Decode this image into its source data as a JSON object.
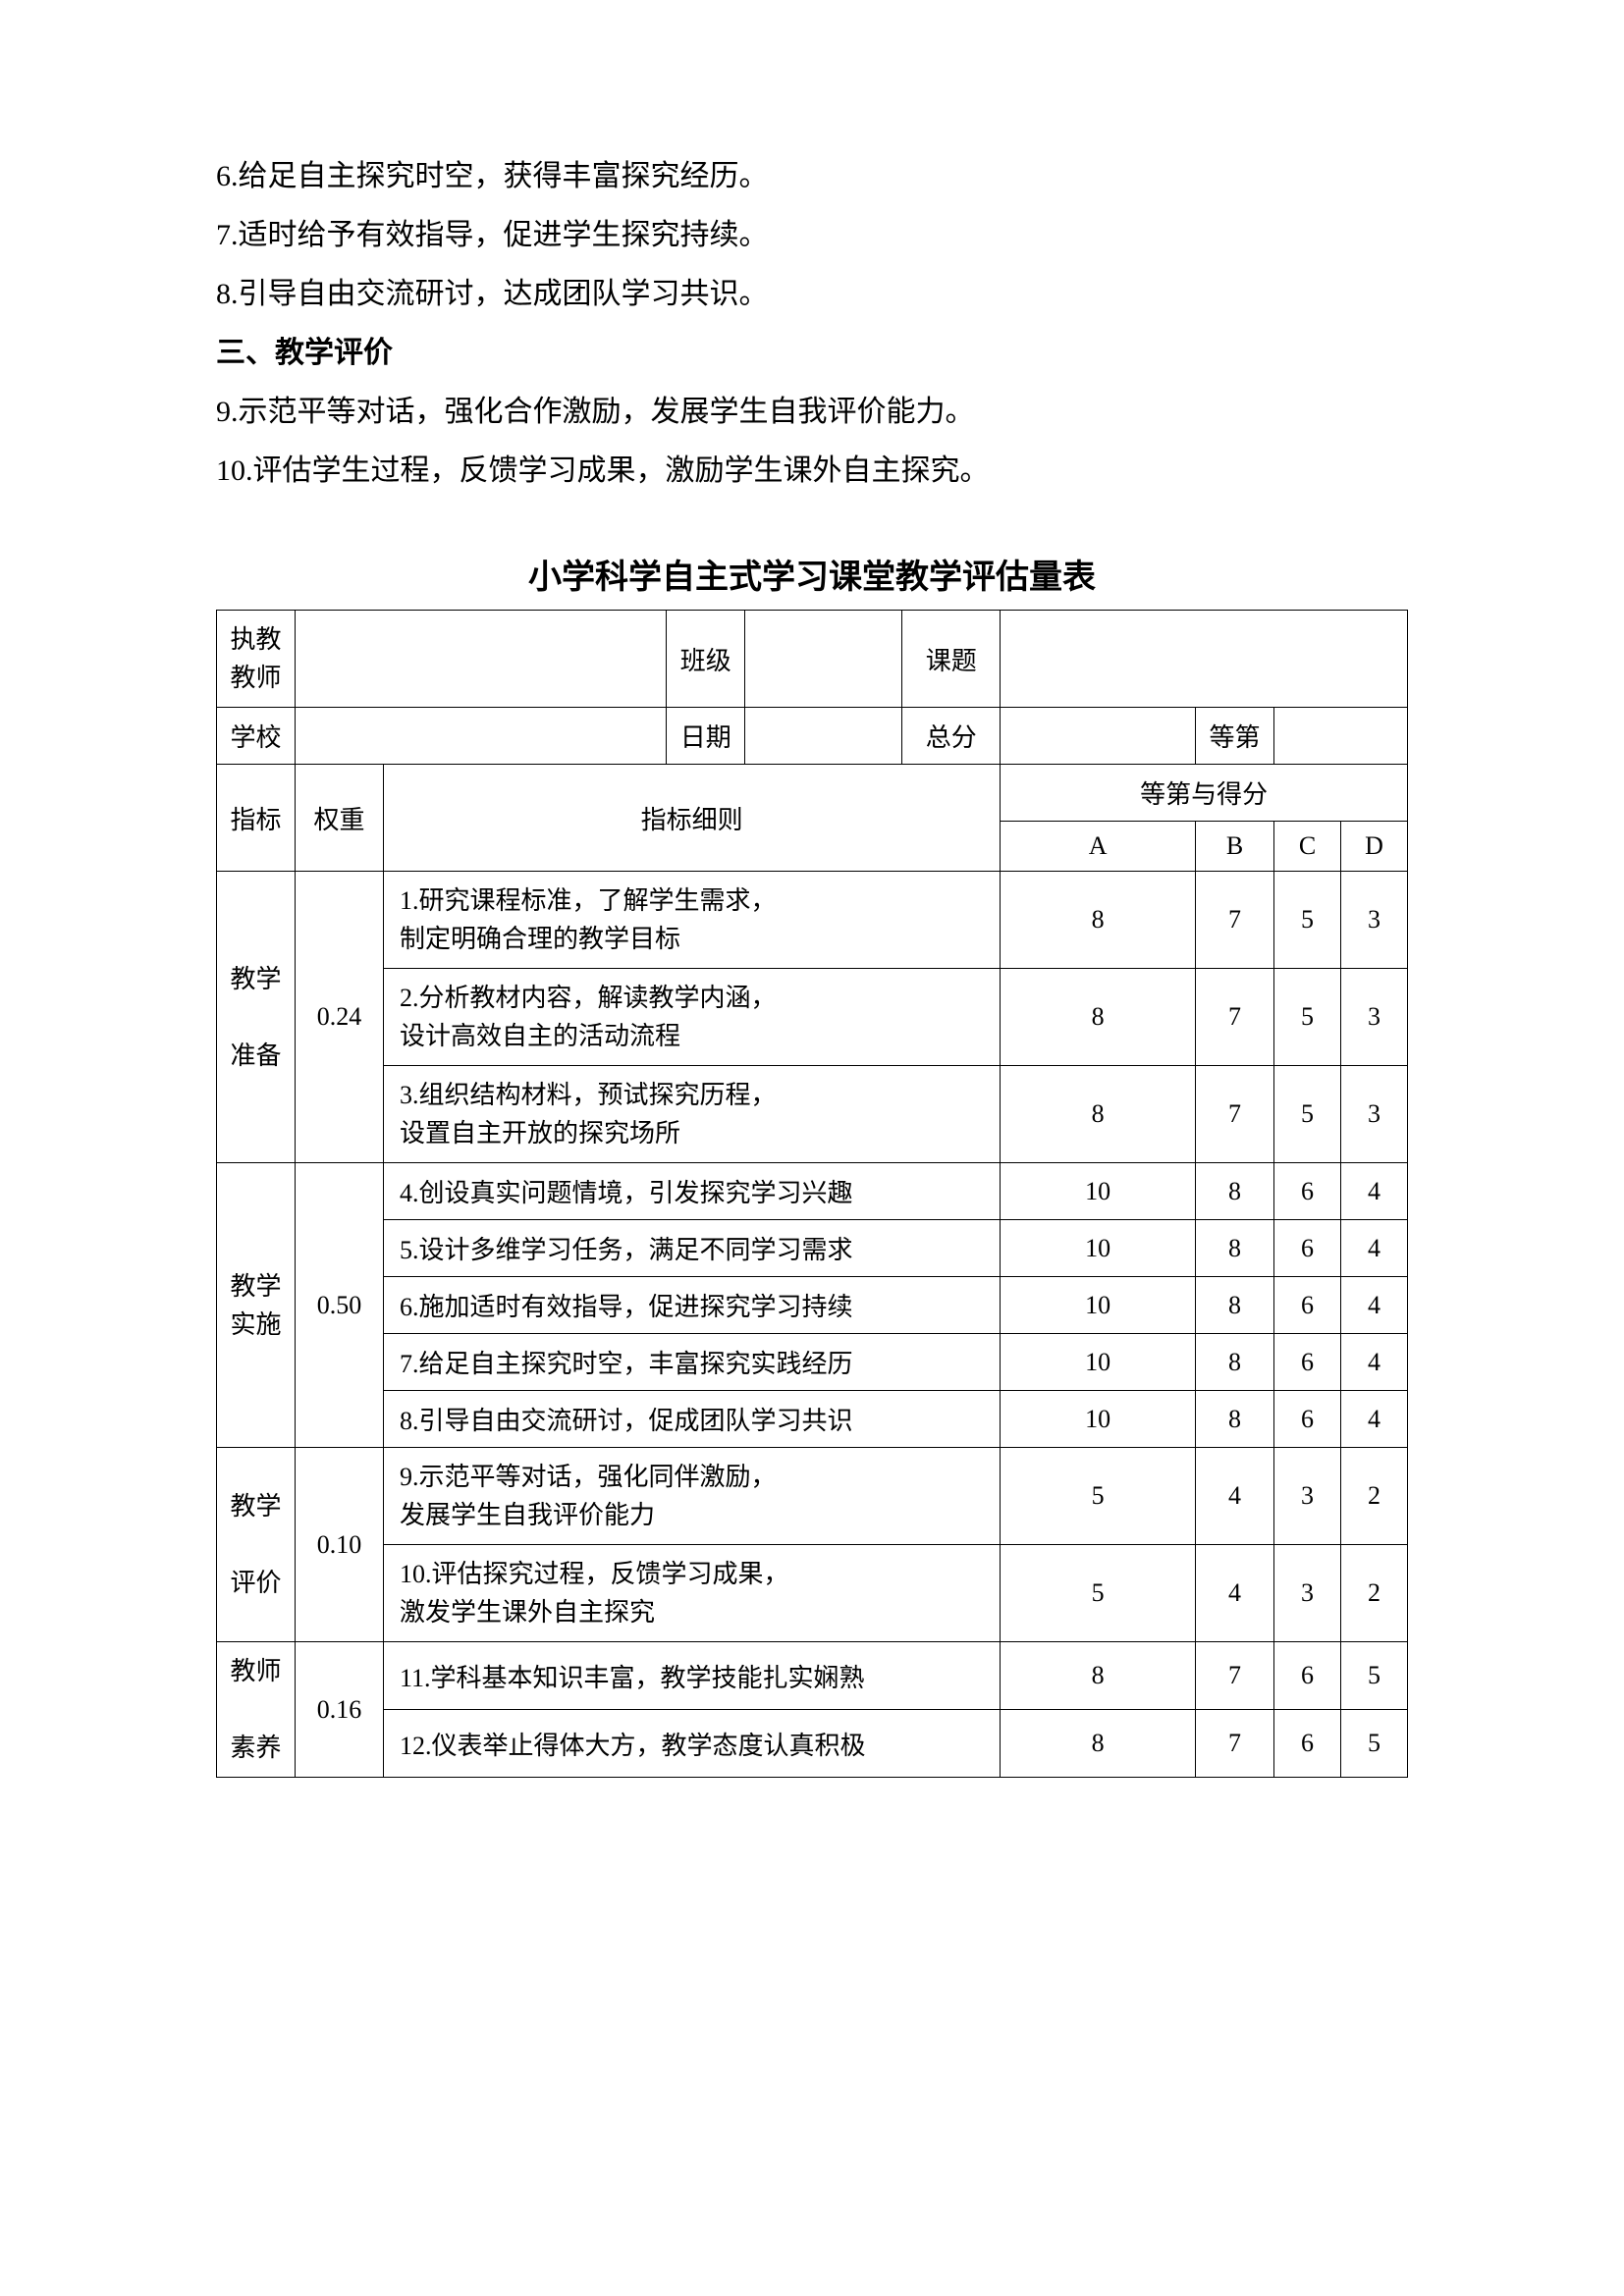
{
  "intro": {
    "line6": "6.给足自主探究时空，获得丰富探究经历。",
    "line7": "7.适时给予有效指导，促进学生探究持续。",
    "line8": "8.引导自由交流研讨，达成团队学习共识。",
    "section3": "三、教学评价",
    "line9": "9.示范平等对话，强化合作激励，发展学生自我评价能力。",
    "line10": "10.评估学生过程，反馈学习成果，激励学生课外自主探究。"
  },
  "table": {
    "title": "小学科学自主式学习课堂教学评估量表",
    "header": {
      "teacher_label": "执教教师",
      "class_label": "班级",
      "topic_label": "课题",
      "school_label": "学校",
      "date_label": "日期",
      "total_label": "总分",
      "grade_label": "等第",
      "indicator_label": "指标",
      "weight_label": "权重",
      "detail_label": "指标细则",
      "gradescore_label": "等第与得分",
      "A": "A",
      "B": "B",
      "C": "C",
      "D": "D"
    },
    "categories": [
      {
        "name": "教学准备",
        "name_line1": "教学",
        "name_line2": "准备",
        "weight": "0.24",
        "rows": [
          {
            "detail": "1.研究课程标准，了解学生需求，",
            "detail2": "制定明确合理的教学目标",
            "A": "8",
            "B": "7",
            "C": "5",
            "D": "3"
          },
          {
            "detail": "2.分析教材内容，解读教学内涵，",
            "detail2": "设计高效自主的活动流程",
            "A": "8",
            "B": "7",
            "C": "5",
            "D": "3"
          },
          {
            "detail": "3.组织结构材料，预试探究历程，",
            "detail2": "设置自主开放的探究场所",
            "A": "8",
            "B": "7",
            "C": "5",
            "D": "3"
          }
        ]
      },
      {
        "name": "教学实施",
        "name_line1": "教学",
        "name_line2": "实施",
        "weight": "0.50",
        "rows": [
          {
            "detail": "4.创设真实问题情境，引发探究学习兴趣",
            "A": "10",
            "B": "8",
            "C": "6",
            "D": "4"
          },
          {
            "detail": "5.设计多维学习任务，满足不同学习需求",
            "A": "10",
            "B": "8",
            "C": "6",
            "D": "4"
          },
          {
            "detail": "6.施加适时有效指导，促进探究学习持续",
            "A": "10",
            "B": "8",
            "C": "6",
            "D": "4"
          },
          {
            "detail": "7.给足自主探究时空，丰富探究实践经历",
            "A": "10",
            "B": "8",
            "C": "6",
            "D": "4"
          },
          {
            "detail": "8.引导自由交流研讨，促成团队学习共识",
            "A": "10",
            "B": "8",
            "C": "6",
            "D": "4"
          }
        ]
      },
      {
        "name": "教学评价",
        "name_line1": "教学",
        "name_line2": "评价",
        "weight": "0.10",
        "rows": [
          {
            "detail": "9.示范平等对话，强化同伴激励，",
            "detail2": "发展学生自我评价能力",
            "A": "5",
            "B": "4",
            "C": "3",
            "D": "2"
          },
          {
            "detail": "10.评估探究过程，反馈学习成果，",
            "detail2": "激发学生课外自主探究",
            "A": "5",
            "B": "4",
            "C": "3",
            "D": "2"
          }
        ]
      },
      {
        "name": "教师素养",
        "name_line1": "教师",
        "name_line2": "素养",
        "weight": "0.16",
        "rows": [
          {
            "detail": "11.学科基本知识丰富，教学技能扎实娴熟",
            "A": "8",
            "B": "7",
            "C": "6",
            "D": "5"
          },
          {
            "detail": "12.仪表举止得体大方，教学态度认真积极",
            "A": "8",
            "B": "7",
            "C": "6",
            "D": "5"
          }
        ]
      }
    ]
  }
}
